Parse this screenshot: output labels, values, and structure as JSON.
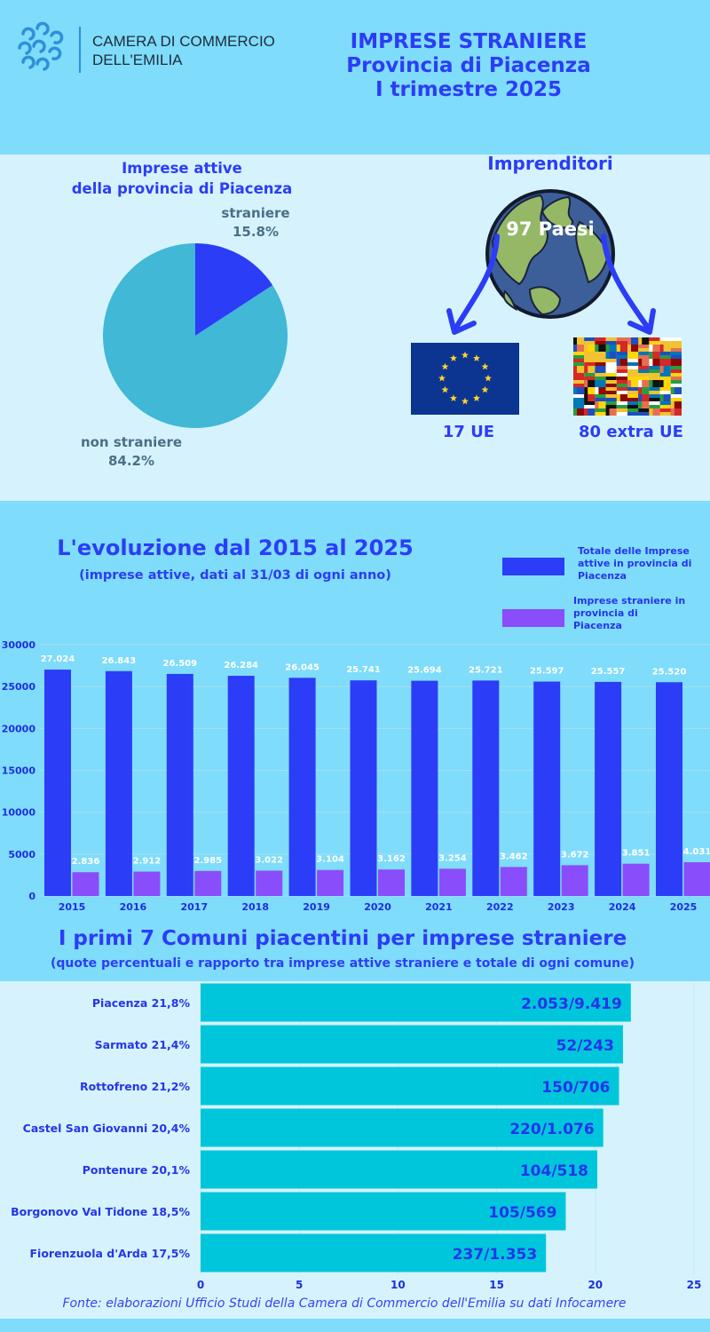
{
  "header": {
    "org_line1": "CAMERA DI COMMERCIO",
    "org_line2": "DELL'EMILIA",
    "title_line1": "IMPRESE STRANIERE",
    "title_line2": "Provincia di Piacenza",
    "title_line3": "I trimestre 2025"
  },
  "pie_section": {
    "title_line1": "Imprese attive",
    "title_line2": "della provincia di Piacenza",
    "slice_a_label": "straniere",
    "slice_a_pct": "15.8%",
    "slice_b_label": "non straniere",
    "slice_b_pct": "84.2%"
  },
  "entrepreneurs": {
    "title": "Imprenditori",
    "globe_label": "97 Paesi",
    "eu_label": "17 UE",
    "extra_label": "80 extra UE"
  },
  "colors": {
    "total_bar": "#2b3df6",
    "foreign_bar": "#8a4dfb",
    "pie_foreign": "#2b3df6",
    "pie_nonforeign": "#41b8d6",
    "hbar": "#00c6dc"
  },
  "evolution": {
    "title": "L'evoluzione dal 2015 al 2025",
    "subtitle": "(imprese attive, dati al 31/03 di ogni anno)",
    "legend_total": [
      "Totale delle Imprese",
      "attive in provincia di",
      "Piacenza"
    ],
    "legend_foreign": [
      "Imprese straniere in",
      "provincia di",
      "Piacenza"
    ]
  },
  "comuni": {
    "title": "I primi 7 Comuni piacentini per imprese straniere",
    "subtitle": "(quote percentuali e rapporto tra imprese attive straniere e totale di ogni comune)"
  },
  "source": "Fonte: elaborazioni Ufficio Studi  della Camera di Commercio  dell'Emilia su dati Infocamere",
  "chart_data": [
    {
      "type": "pie",
      "categories": [
        "straniere",
        "non straniere"
      ],
      "values": [
        15.8,
        84.2
      ]
    },
    {
      "type": "bar",
      "categories": [
        "2015",
        "2016",
        "2017",
        "2018",
        "2019",
        "2020",
        "2021",
        "2022",
        "2023",
        "2024",
        "2025"
      ],
      "series": [
        {
          "name": "Totale delle Imprese attive in provincia di Piacenza",
          "values": [
            27024,
            26843,
            26509,
            26284,
            26045,
            25741,
            25694,
            25721,
            25597,
            25557,
            25520
          ],
          "labels": [
            "27.024",
            "26.843",
            "26.509",
            "26.284",
            "26.045",
            "25.741",
            "25.694",
            "25.721",
            "25.597",
            "25.557",
            "25.520"
          ]
        },
        {
          "name": "Imprese straniere in provincia di Piacenza",
          "values": [
            2836,
            2912,
            2985,
            3022,
            3104,
            3162,
            3254,
            3462,
            3672,
            3851,
            4031
          ],
          "labels": [
            "2.836",
            "2.912",
            "2.985",
            "3.022",
            "3.104",
            "3.162",
            "3.254",
            "3.462",
            "3.672",
            "3.851",
            "4.031"
          ]
        }
      ],
      "ylim": [
        0,
        30000
      ],
      "yticks": [
        "0",
        "5000",
        "10000",
        "15000",
        "20000",
        "25000",
        "30000"
      ],
      "grid": true,
      "legend": "top-right"
    },
    {
      "type": "bar",
      "orientation": "horizontal",
      "categories": [
        "Piacenza 21,8%",
        "Sarmato 21,4%",
        "Rottofreno 21,2%",
        "Castel San Giovanni 20,4%",
        "Pontenure 20,1%",
        "Borgonovo Val Tidone 18,5%",
        "Fiorenzuola d'Arda 17,5%"
      ],
      "values": [
        21.8,
        21.4,
        21.2,
        20.4,
        20.1,
        18.5,
        17.5
      ],
      "bar_labels": [
        "2.053/9.419",
        "52/243",
        "150/706",
        "220/1.076",
        "104/518",
        "105/569",
        "237/1.353"
      ],
      "xlim": [
        0,
        25
      ],
      "xticks": [
        "0",
        "5",
        "10",
        "15",
        "20",
        "25"
      ]
    }
  ]
}
